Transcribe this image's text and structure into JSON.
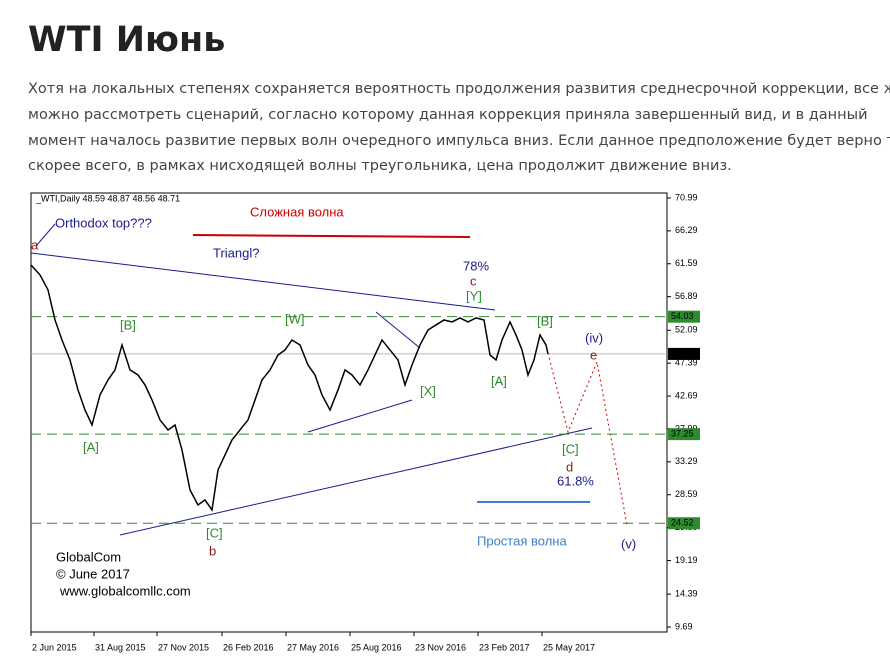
{
  "title": "WTI Июнь",
  "paragraph": [
    "Хотя на локальных степенях сохраняется вероятность продолжения развития среднесрочной коррекции, все же",
    "можно рассмотреть сценарий, согласно которому данная коррекция приняла завершенный вид, и в данный",
    "момент началось развитие первых волн очередного импульса вниз. Если данное предположение будет верно то,",
    "скорее всего, в рамках нисходящей волны треугольника, цена продолжит движение вниз."
  ],
  "chart_data": {
    "type": "line",
    "info": "_WTI,Daily  48.59 48.87 48.56 48.71",
    "x": [
      0,
      9,
      17,
      24,
      31,
      39,
      47,
      54,
      61,
      69,
      77,
      84,
      91,
      99,
      107,
      114,
      121,
      129,
      137,
      144,
      151,
      159,
      167,
      174,
      181,
      187,
      194,
      201,
      209,
      217,
      224,
      231,
      239,
      247,
      254,
      261,
      269,
      277,
      284,
      291,
      299,
      307,
      314,
      321,
      329,
      337,
      344,
      351,
      359,
      367,
      374,
      381,
      389,
      397,
      405,
      413,
      421,
      429,
      437,
      445,
      453,
      459,
      465,
      471,
      479,
      485,
      491,
      497,
      503,
      509,
      515,
      517
    ],
    "series": [
      {
        "color": "#000000",
        "values": [
          61.42,
          60.0,
          57.85,
          53.56,
          50.7,
          47.85,
          43.56,
          40.7,
          38.56,
          42.85,
          44.99,
          46.42,
          49.99,
          46.42,
          45.7,
          44.28,
          42.13,
          39.28,
          37.85,
          38.56,
          34.99,
          29.28,
          27.13,
          27.85,
          26.42,
          32.13,
          34.28,
          36.42,
          37.85,
          39.28,
          42.13,
          44.99,
          46.42,
          48.56,
          49.28,
          50.7,
          49.99,
          47.13,
          45.7,
          42.85,
          40.7,
          43.56,
          46.42,
          45.7,
          44.28,
          46.42,
          48.56,
          50.7,
          49.28,
          47.85,
          44.28,
          47.13,
          49.99,
          52.13,
          52.85,
          53.56,
          53.28,
          53.85,
          53.28,
          53.85,
          53.56,
          48.56,
          47.85,
          50.7,
          53.28,
          51.42,
          49.28,
          45.7,
          47.85,
          51.42,
          49.99,
          48.71
        ]
      }
    ],
    "xlim": [
      0,
      636
    ],
    "xticks": [
      {
        "value": 0,
        "label": "2 Jun 2015"
      },
      {
        "value": 63,
        "label": "31 Aug 2015"
      },
      {
        "value": 126,
        "label": "27 Nov 2015"
      },
      {
        "value": 191,
        "label": "26 Feb 2016"
      },
      {
        "value": 255,
        "label": "27 May 2016"
      },
      {
        "value": 319,
        "label": "25 Aug 2016"
      },
      {
        "value": 383,
        "label": "23 Nov 2016"
      },
      {
        "value": 447,
        "label": "23 Feb 2017"
      },
      {
        "value": 511,
        "label": "25 May 2017"
      }
    ],
    "ylim": [
      8.98,
      71.7
    ],
    "yticks": [
      70.99,
      66.29,
      61.59,
      56.89,
      52.09,
      47.39,
      42.69,
      37.99,
      33.29,
      28.59,
      23.89,
      19.19,
      14.39,
      9.69
    ],
    "levels": [
      54.03,
      37.25,
      24.52
    ],
    "level_color": "#2e8b2e",
    "last": 48.71,
    "annotations": [
      {
        "text": "Orthodox top???",
        "color": "#1a1a8c"
      },
      {
        "text": "a",
        "color": "#8b1a1a"
      },
      {
        "text": "Сложная волна",
        "color": "#cc0000"
      },
      {
        "text": "Triangl?",
        "color": "#1a1a8c"
      },
      {
        "text": "78%",
        "color": "#1a1a8c"
      },
      {
        "text": "c",
        "color": "#8b1a1a"
      },
      {
        "text": "[Y]",
        "color": "#2e8b2e"
      },
      {
        "text": "[B]",
        "color": "#2e8b2e"
      },
      {
        "text": "[W]",
        "color": "#2e8b2e"
      },
      {
        "text": "[B]",
        "color": "#2e8b2e"
      },
      {
        "text": "[A]",
        "color": "#2e8b2e"
      },
      {
        "text": "[X]",
        "color": "#2e8b2e"
      },
      {
        "text": "[A]",
        "color": "#2e8b2e"
      },
      {
        "text": "[C]",
        "color": "#2e8b2e"
      },
      {
        "text": "d",
        "color": "#8b1a1a"
      },
      {
        "text": "61.8%",
        "color": "#1a1a8c"
      },
      {
        "text": "[C]",
        "color": "#2e8b2e"
      },
      {
        "text": "b",
        "color": "#8b1a1a"
      },
      {
        "text": "(iv)",
        "color": "#1a1a8c"
      },
      {
        "text": "e",
        "color": "#8b1a1a"
      },
      {
        "text": "Простая волна",
        "color": "#3a7fd0"
      },
      {
        "text": "(v)",
        "color": "#1a1a8c"
      }
    ],
    "credits": [
      "GlobalCom",
      "© June 2017",
      "www.globalcomllc.com"
    ]
  }
}
